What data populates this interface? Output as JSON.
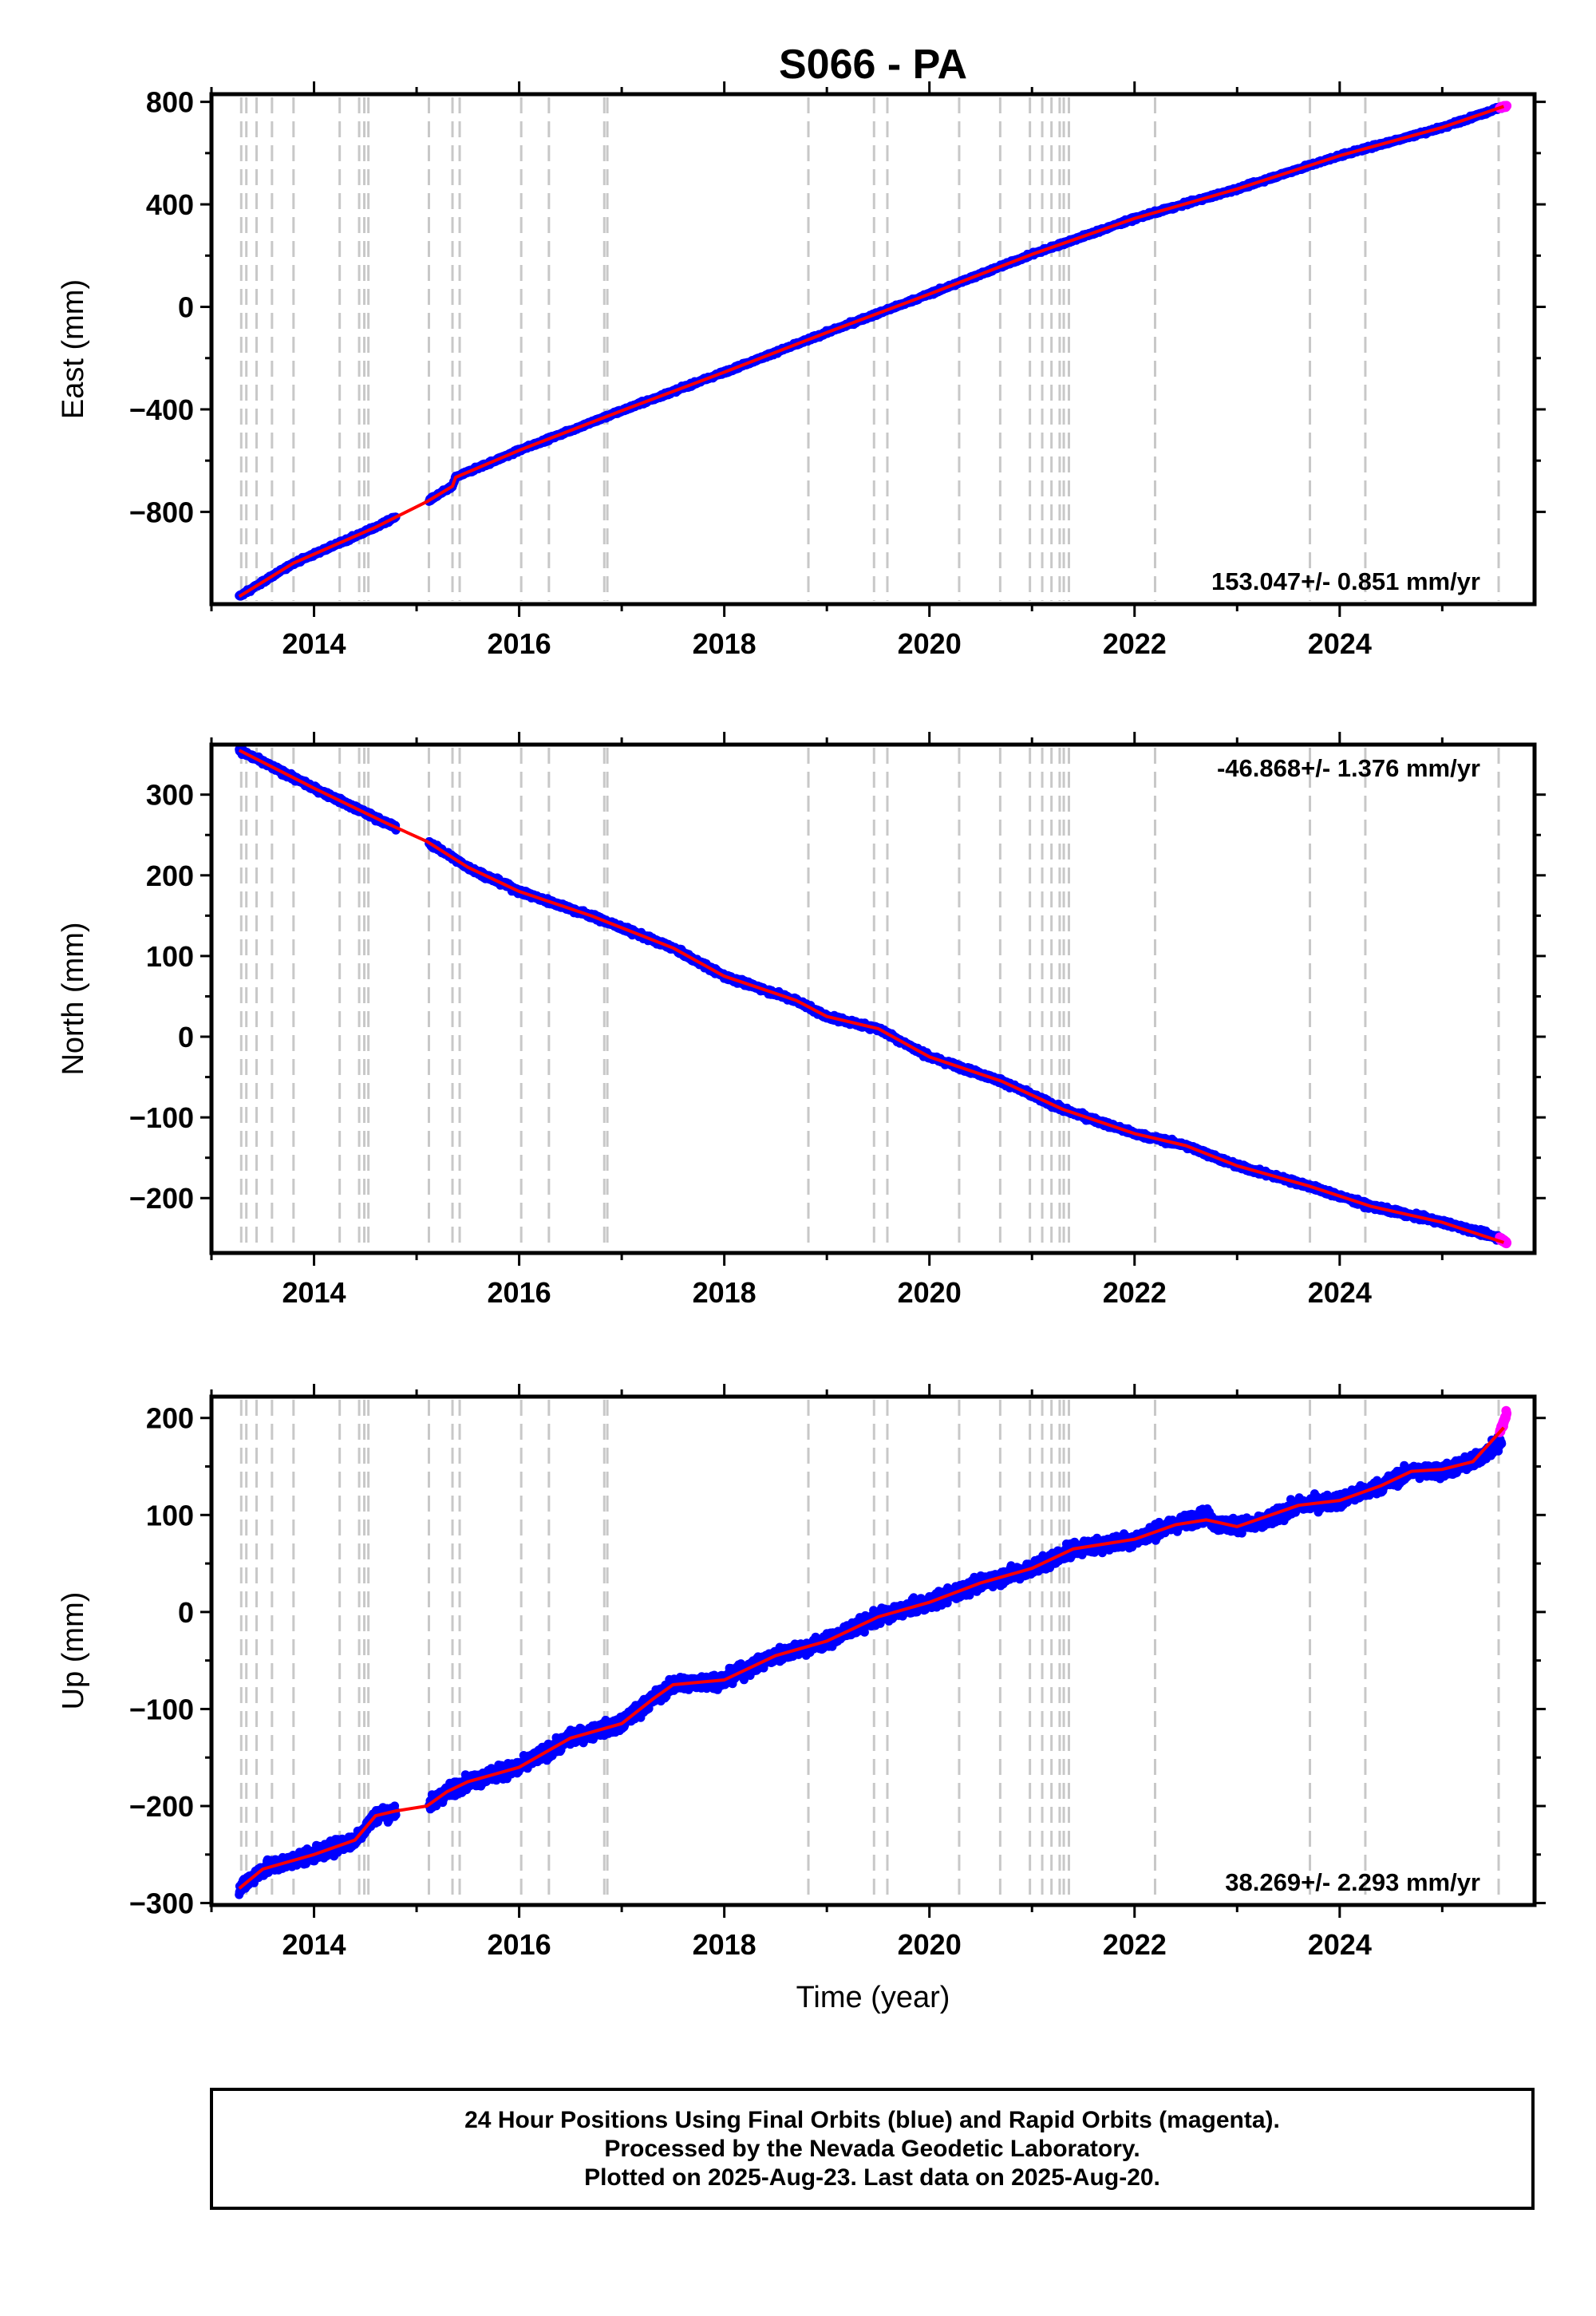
{
  "title": "S066 - PA",
  "x_axis_label": "Time (year)",
  "footer": {
    "line1": "24 Hour Positions Using Final Orbits (blue) and Rapid Orbits (magenta).",
    "line2": "Processed by the Nevada Geodetic Laboratory.",
    "line3": "Plotted on 2025-Aug-23. Last data on 2025-Aug-20."
  },
  "colors": {
    "final_orbits": "#0000ff",
    "rapid_orbits": "#ff00ff",
    "model_fit": "#ff0000",
    "event_lines": "#c8c8c8"
  },
  "chart_data": [
    {
      "type": "scatter",
      "component": "east",
      "ylabel": "East (mm)",
      "xlim": [
        2013.0,
        2025.9
      ],
      "ylim": [
        -1160,
        830
      ],
      "xticks": [
        2014,
        2016,
        2018,
        2020,
        2022,
        2024
      ],
      "yticks": [
        800,
        400,
        0,
        -400,
        -800
      ],
      "ytick_labels": [
        "800",
        "400",
        "0",
        "−400",
        "−800"
      ],
      "rate_label": "153.047+/- 0.851 mm/yr",
      "rate_position": "bottom-right",
      "grid": false,
      "noise_mm": 6,
      "series": [
        {
          "name": "Final Orbits",
          "color": "#0000ff",
          "x_start": 2013.27,
          "x_end": 2025.58,
          "gaps": [
            [
              2014.8,
              2015.12
            ]
          ],
          "points": [
            [
              2013.27,
              -1130
            ],
            [
              2013.8,
              -1000
            ],
            [
              2014.6,
              -860
            ],
            [
              2015.1,
              -760
            ],
            [
              2015.35,
              -700
            ],
            [
              2015.38,
              -665
            ],
            [
              2016.0,
              -560
            ],
            [
              2017.0,
              -405
            ],
            [
              2018.0,
              -255
            ],
            [
              2019.0,
              -100
            ],
            [
              2020.0,
              50
            ],
            [
              2021.0,
              205
            ],
            [
              2022.0,
              345
            ],
            [
              2023.0,
              460
            ],
            [
              2024.0,
              590
            ],
            [
              2025.0,
              700
            ],
            [
              2025.58,
              780
            ]
          ]
        },
        {
          "name": "Rapid Orbits",
          "color": "#ff00ff",
          "x_start": 2025.56,
          "x_end": 2025.63,
          "points": [
            [
              2025.56,
              775
            ],
            [
              2025.63,
              785
            ]
          ]
        },
        {
          "name": "Model",
          "color": "#ff0000",
          "points": [
            [
              2013.27,
              -1130
            ],
            [
              2013.8,
              -1000
            ],
            [
              2014.6,
              -860
            ],
            [
              2015.1,
              -760
            ],
            [
              2015.35,
              -700
            ],
            [
              2015.38,
              -665
            ],
            [
              2016.0,
              -560
            ],
            [
              2017.0,
              -405
            ],
            [
              2018.0,
              -255
            ],
            [
              2019.0,
              -100
            ],
            [
              2020.0,
              50
            ],
            [
              2021.0,
              205
            ],
            [
              2022.0,
              345
            ],
            [
              2023.0,
              460
            ],
            [
              2024.0,
              590
            ],
            [
              2025.0,
              700
            ],
            [
              2025.6,
              782
            ]
          ]
        }
      ]
    },
    {
      "type": "scatter",
      "component": "north",
      "ylabel": "North (mm)",
      "xlim": [
        2013.0,
        2025.9
      ],
      "ylim": [
        -268,
        362
      ],
      "xticks": [
        2014,
        2016,
        2018,
        2020,
        2022,
        2024
      ],
      "yticks": [
        300,
        200,
        100,
        0,
        -100,
        -200
      ],
      "ytick_labels": [
        "300",
        "200",
        "100",
        "0",
        "−100",
        "−200"
      ],
      "rate_label": "-46.868+/- 1.376 mm/yr",
      "rate_position": "top-right",
      "grid": false,
      "noise_mm": 3,
      "series": [
        {
          "name": "Final Orbits",
          "color": "#0000ff",
          "x_start": 2013.27,
          "x_end": 2025.58,
          "gaps": [
            [
              2014.8,
              2015.12
            ]
          ],
          "points": [
            [
              2013.27,
              355
            ],
            [
              2014.0,
              308
            ],
            [
              2014.7,
              265
            ],
            [
              2015.1,
              242
            ],
            [
              2015.5,
              210
            ],
            [
              2016.0,
              180
            ],
            [
              2016.7,
              150
            ],
            [
              2017.5,
              110
            ],
            [
              2018.0,
              75
            ],
            [
              2018.7,
              45
            ],
            [
              2019.0,
              25
            ],
            [
              2019.5,
              10
            ],
            [
              2020.0,
              -25
            ],
            [
              2020.7,
              -55
            ],
            [
              2021.3,
              -90
            ],
            [
              2022.0,
              -120
            ],
            [
              2022.5,
              -135
            ],
            [
              2023.0,
              -160
            ],
            [
              2023.7,
              -185
            ],
            [
              2024.3,
              -210
            ],
            [
              2025.0,
              -230
            ],
            [
              2025.58,
              -250
            ]
          ]
        },
        {
          "name": "Rapid Orbits",
          "color": "#ff00ff",
          "x_start": 2025.56,
          "x_end": 2025.63,
          "points": [
            [
              2025.56,
              -250
            ],
            [
              2025.63,
              -255
            ]
          ]
        },
        {
          "name": "Model",
          "color": "#ff0000",
          "points": [
            [
              2013.27,
              355
            ],
            [
              2014.0,
              308
            ],
            [
              2014.7,
              265
            ],
            [
              2015.1,
              242
            ],
            [
              2015.5,
              210
            ],
            [
              2016.0,
              180
            ],
            [
              2016.7,
              150
            ],
            [
              2017.5,
              110
            ],
            [
              2018.0,
              75
            ],
            [
              2018.7,
              45
            ],
            [
              2019.0,
              25
            ],
            [
              2019.5,
              10
            ],
            [
              2020.0,
              -25
            ],
            [
              2020.7,
              -55
            ],
            [
              2021.3,
              -90
            ],
            [
              2022.0,
              -120
            ],
            [
              2022.5,
              -135
            ],
            [
              2023.0,
              -160
            ],
            [
              2023.7,
              -185
            ],
            [
              2024.3,
              -210
            ],
            [
              2025.0,
              -230
            ],
            [
              2025.6,
              -255
            ]
          ]
        }
      ]
    },
    {
      "type": "scatter",
      "component": "up",
      "ylabel": "Up (mm)",
      "xlim": [
        2013.0,
        2025.9
      ],
      "ylim": [
        -302,
        222
      ],
      "xticks": [
        2014,
        2016,
        2018,
        2020,
        2022,
        2024
      ],
      "yticks": [
        200,
        100,
        0,
        -100,
        -200,
        -300
      ],
      "ytick_labels": [
        "200",
        "100",
        "0",
        "−100",
        "−200",
        "−300"
      ],
      "rate_label": "38.269+/- 2.293 mm/yr",
      "rate_position": "bottom-right",
      "grid": false,
      "noise_mm": 7,
      "series": [
        {
          "name": "Final Orbits",
          "color": "#0000ff",
          "x_start": 2013.27,
          "x_end": 2025.58,
          "gaps": [
            [
              2014.8,
              2015.12
            ]
          ],
          "points": [
            [
              2013.27,
              -285
            ],
            [
              2013.5,
              -265
            ],
            [
              2014.0,
              -250
            ],
            [
              2014.4,
              -235
            ],
            [
              2014.6,
              -210
            ],
            [
              2014.8,
              -205
            ],
            [
              2015.1,
              -200
            ],
            [
              2015.3,
              -185
            ],
            [
              2015.5,
              -175
            ],
            [
              2016.0,
              -160
            ],
            [
              2016.5,
              -130
            ],
            [
              2017.0,
              -115
            ],
            [
              2017.3,
              -90
            ],
            [
              2017.5,
              -75
            ],
            [
              2018.0,
              -70
            ],
            [
              2018.5,
              -45
            ],
            [
              2019.0,
              -30
            ],
            [
              2019.5,
              -5
            ],
            [
              2020.0,
              10
            ],
            [
              2020.5,
              30
            ],
            [
              2021.0,
              45
            ],
            [
              2021.4,
              65
            ],
            [
              2022.0,
              75
            ],
            [
              2022.4,
              90
            ],
            [
              2022.7,
              100
            ],
            [
              2022.8,
              90
            ],
            [
              2023.2,
              90
            ],
            [
              2023.6,
              110
            ],
            [
              2024.0,
              115
            ],
            [
              2024.4,
              130
            ],
            [
              2024.7,
              145
            ],
            [
              2025.0,
              145
            ],
            [
              2025.3,
              155
            ],
            [
              2025.58,
              175
            ]
          ]
        },
        {
          "name": "Rapid Orbits",
          "color": "#ff00ff",
          "x_start": 2025.56,
          "x_end": 2025.63,
          "points": [
            [
              2025.56,
              185
            ],
            [
              2025.63,
              205
            ]
          ]
        },
        {
          "name": "Model",
          "color": "#ff0000",
          "points": [
            [
              2013.27,
              -285
            ],
            [
              2013.5,
              -265
            ],
            [
              2014.0,
              -250
            ],
            [
              2014.4,
              -235
            ],
            [
              2014.6,
              -210
            ],
            [
              2014.8,
              -205
            ],
            [
              2015.1,
              -200
            ],
            [
              2015.3,
              -185
            ],
            [
              2015.5,
              -175
            ],
            [
              2016.0,
              -160
            ],
            [
              2016.5,
              -130
            ],
            [
              2017.0,
              -115
            ],
            [
              2017.3,
              -90
            ],
            [
              2017.5,
              -75
            ],
            [
              2018.0,
              -70
            ],
            [
              2018.5,
              -45
            ],
            [
              2019.0,
              -30
            ],
            [
              2019.5,
              -5
            ],
            [
              2020.0,
              10
            ],
            [
              2020.5,
              30
            ],
            [
              2021.0,
              45
            ],
            [
              2021.4,
              65
            ],
            [
              2022.0,
              75
            ],
            [
              2022.4,
              90
            ],
            [
              2022.7,
              95
            ],
            [
              2023.0,
              88
            ],
            [
              2023.6,
              110
            ],
            [
              2024.0,
              115
            ],
            [
              2024.4,
              130
            ],
            [
              2024.7,
              145
            ],
            [
              2025.0,
              147
            ],
            [
              2025.3,
              155
            ],
            [
              2025.6,
              190
            ]
          ]
        }
      ]
    }
  ],
  "event_lines_years": [
    2013.29,
    2013.34,
    2013.44,
    2013.59,
    2013.8,
    2014.25,
    2014.44,
    2014.49,
    2014.53,
    2015.12,
    2015.35,
    2015.42,
    2016.02,
    2016.29,
    2016.83,
    2016.86,
    2018.82,
    2019.46,
    2019.59,
    2020.29,
    2020.69,
    2020.98,
    2021.1,
    2021.19,
    2021.27,
    2021.31,
    2021.36,
    2022.2,
    2023.71,
    2024.25,
    2025.55
  ]
}
